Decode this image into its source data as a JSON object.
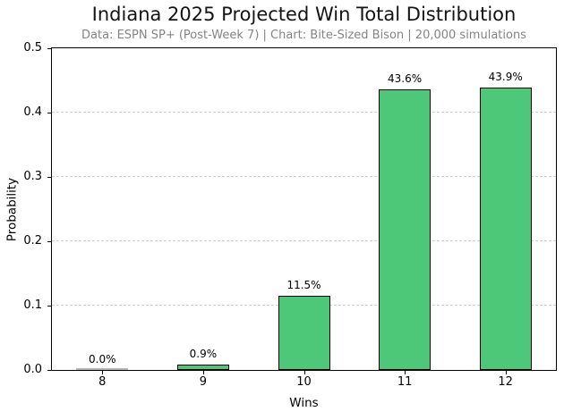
{
  "chart_data": {
    "type": "bar",
    "title": "Indiana 2025 Projected Win Total Distribution",
    "subtitle": "Data: ESPN SP+ (Post-Week 7) | Chart: Bite-Sized Bison | 20,000 simulations",
    "xlabel": "Wins",
    "ylabel": "Probability",
    "categories": [
      "8",
      "9",
      "10",
      "11",
      "12"
    ],
    "values": [
      0.0,
      0.009,
      0.115,
      0.436,
      0.439
    ],
    "bar_labels": [
      "0.0%",
      "0.9%",
      "11.5%",
      "43.6%",
      "43.9%"
    ],
    "ylim": [
      0,
      0.5
    ],
    "yticks": [
      "0.0",
      "0.1",
      "0.2",
      "0.3",
      "0.4",
      "0.5"
    ],
    "grid": "horizontal-dashed",
    "legend": "none",
    "colors": {
      "bar_fill": "#4dc878",
      "bar_edge": "#000000",
      "zero_bar": "#b5b5b5",
      "grid": "#cfcfcf",
      "title": "#141414",
      "subtitle": "#848484",
      "axis": "#000000",
      "background": "#ffffff"
    }
  }
}
